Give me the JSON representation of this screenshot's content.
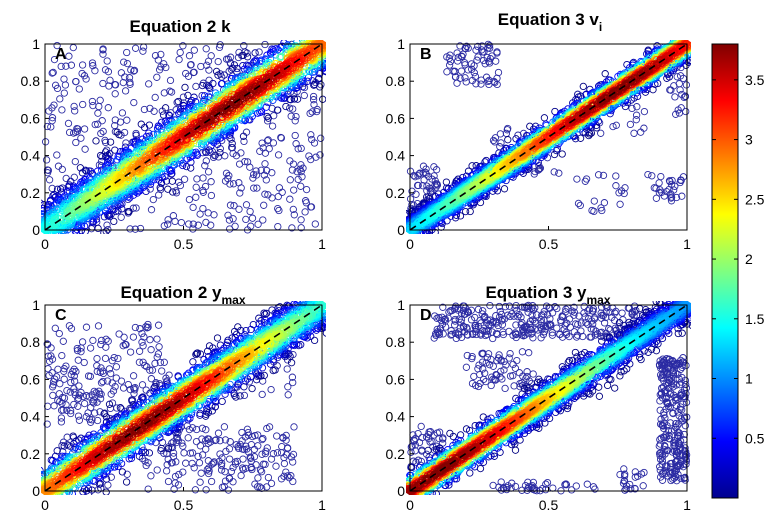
{
  "chart_data": [
    {
      "type": "scatter",
      "panel_letter": "A",
      "title": {
        "main": "Equation 2 k",
        "sub": ""
      },
      "xlim": [
        0,
        1
      ],
      "ylim": [
        0,
        1
      ],
      "xticks": [
        {
          "v": 0,
          "label": "0"
        },
        {
          "v": 0.5,
          "label": "0.5"
        },
        {
          "v": 1,
          "label": "1"
        }
      ],
      "yticks": [
        {
          "v": 0,
          "label": "0"
        },
        {
          "v": 0.2,
          "label": "0.2"
        },
        {
          "v": 0.4,
          "label": "0.4"
        },
        {
          "v": 0.6,
          "label": "0.6"
        },
        {
          "v": 0.8,
          "label": "0.8"
        },
        {
          "v": 1,
          "label": "1"
        }
      ],
      "diagonal_line": {
        "from": [
          0,
          0
        ],
        "to": [
          1,
          1
        ],
        "style": "dashed",
        "color": "#000000"
      },
      "grid": false,
      "density_ridge": {
        "along": "y=x",
        "peak_center": 0.68,
        "band_halfwidth": 0.08
      },
      "outliers": "scattered uniformly over the whole plot area"
    },
    {
      "type": "scatter",
      "panel_letter": "B",
      "title": {
        "main": "Equation 3 v",
        "sub": "i"
      },
      "xlim": [
        0,
        1
      ],
      "ylim": [
        0,
        1
      ],
      "xticks": [
        {
          "v": 0,
          "label": "0"
        },
        {
          "v": 0.5,
          "label": "0.5"
        },
        {
          "v": 1,
          "label": "1"
        }
      ],
      "yticks": [
        {
          "v": 0,
          "label": "0"
        },
        {
          "v": 0.2,
          "label": "0.2"
        },
        {
          "v": 0.4,
          "label": "0.4"
        },
        {
          "v": 0.6,
          "label": "0.6"
        },
        {
          "v": 0.8,
          "label": "0.8"
        },
        {
          "v": 1,
          "label": "1"
        }
      ],
      "diagonal_line": {
        "from": [
          0,
          0
        ],
        "to": [
          1,
          1
        ],
        "style": "dashed",
        "color": "#000000"
      },
      "grid": false,
      "density_ridge": {
        "along": "y=x",
        "peak_center": 0.75,
        "band_halfwidth": 0.045
      },
      "outliers": "sparse clusters near (0.2,0.9), (0.05,0.25), (0.4,0.4), (0.9,0.2)"
    },
    {
      "type": "scatter",
      "panel_letter": "C",
      "title": {
        "main": "Equation 2 y",
        "sub": "max"
      },
      "xlim": [
        0,
        1
      ],
      "ylim": [
        0,
        1
      ],
      "xticks": [
        {
          "v": 0,
          "label": "0"
        },
        {
          "v": 0.5,
          "label": "0.5"
        },
        {
          "v": 1,
          "label": "1"
        }
      ],
      "yticks": [
        {
          "v": 0,
          "label": "0"
        },
        {
          "v": 0.2,
          "label": "0.2"
        },
        {
          "v": 0.4,
          "label": "0.4"
        },
        {
          "v": 0.6,
          "label": "0.6"
        },
        {
          "v": 0.8,
          "label": "0.8"
        },
        {
          "v": 1,
          "label": "1"
        }
      ],
      "diagonal_line": {
        "from": [
          0,
          0
        ],
        "to": [
          1,
          1
        ],
        "style": "dashed",
        "color": "#000000"
      },
      "grid": false,
      "density_ridge": {
        "along": "y=x",
        "peak_center": 0.35,
        "band_halfwidth": 0.07
      },
      "outliers": "scattered, denser in upper-left and lower-right"
    },
    {
      "type": "scatter",
      "panel_letter": "D",
      "title": {
        "main": "Equation 3 y",
        "sub": "max"
      },
      "xlim": [
        0,
        1
      ],
      "ylim": [
        0,
        1
      ],
      "xticks": [
        {
          "v": 0,
          "label": "0"
        },
        {
          "v": 0.5,
          "label": "0.5"
        },
        {
          "v": 1,
          "label": "1"
        }
      ],
      "yticks": [
        {
          "v": 0,
          "label": "0"
        },
        {
          "v": 0.2,
          "label": "0.2"
        },
        {
          "v": 0.4,
          "label": "0.4"
        },
        {
          "v": 0.6,
          "label": "0.6"
        },
        {
          "v": 0.8,
          "label": "0.8"
        },
        {
          "v": 1,
          "label": "1"
        }
      ],
      "diagonal_line": {
        "from": [
          0,
          0
        ],
        "to": [
          1,
          1
        ],
        "style": "dashed",
        "color": "#000000"
      },
      "grid": false,
      "density_ridge": {
        "along": "y=x",
        "peak_center": 0.1,
        "band_halfwidth": 0.05
      },
      "outliers": "bands near y=1 (x 0.1–0.8), x=1 (y 0.2–0.6), plus (0.3,0.7)"
    }
  ],
  "colorbar": {
    "colormap": "jet",
    "range": [
      0.0,
      3.8
    ],
    "ticks": [
      {
        "v": 0.5,
        "label": "0.5"
      },
      {
        "v": 1,
        "label": "1"
      },
      {
        "v": 1.5,
        "label": "1.5"
      },
      {
        "v": 2,
        "label": "2"
      },
      {
        "v": 2.5,
        "label": "2.5"
      },
      {
        "v": 3,
        "label": "3"
      },
      {
        "v": 3.5,
        "label": "3.5"
      }
    ],
    "marker_color_low": "#2b2ba3"
  }
}
